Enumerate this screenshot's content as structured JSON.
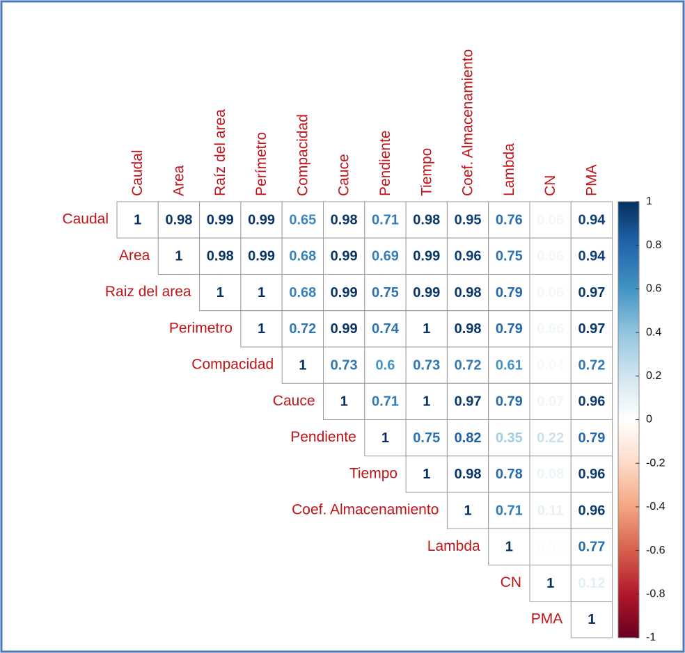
{
  "chart_data": {
    "type": "corrplot",
    "categories": [
      "Caudal",
      "Area",
      "Raíz del area",
      "Perímetro",
      "Compacidad",
      "Cauce",
      "Pendiente",
      "Tiempo",
      "Coef. Almacenamiento",
      "Lambda",
      "CN",
      "PMA"
    ],
    "row_labels": [
      "Caudal",
      "Area",
      "Raiz del area",
      "Perimetro",
      "Compacidad",
      "Cauce",
      "Pendiente",
      "Tiempo",
      "Coef. Almacenamiento",
      "Lambda",
      "CN",
      "PMA"
    ],
    "matrix": [
      [
        1,
        0.98,
        0.99,
        0.99,
        0.65,
        0.98,
        0.71,
        0.98,
        0.95,
        0.76,
        0.06,
        0.94
      ],
      [
        1,
        0.98,
        0.99,
        0.68,
        0.99,
        0.69,
        0.99,
        0.96,
        0.75,
        0.06,
        0.94
      ],
      [
        1,
        1,
        0.68,
        0.99,
        0.75,
        0.99,
        0.98,
        0.79,
        0.06,
        0.97
      ],
      [
        1,
        0.72,
        0.99,
        0.74,
        1,
        0.98,
        0.79,
        0.06,
        0.97
      ],
      [
        1,
        0.73,
        0.6,
        0.73,
        0.72,
        0.61,
        0.04,
        0.72
      ],
      [
        1,
        0.71,
        1,
        0.97,
        0.79,
        0.07,
        0.96
      ],
      [
        1,
        0.75,
        0.82,
        0.35,
        0.22,
        0.79
      ],
      [
        1,
        0.98,
        0.78,
        0.08,
        0.96
      ],
      [
        1,
        0.71,
        0.11,
        0.96
      ],
      [
        1,
        0.02,
        0.77
      ],
      [
        1,
        0.12
      ],
      [
        1
      ]
    ],
    "colors": [
      "#67001F",
      "#B2182B",
      "#D6604D",
      "#F4A582",
      "#FDDBC7",
      "#FFFFFF",
      "#D1E5F0",
      "#92C5DE",
      "#4393C3",
      "#2166AC",
      "#053061"
    ],
    "ylim": [
      -1,
      1
    ],
    "yticks": [
      1,
      0.8,
      0.6,
      0.4,
      0.2,
      0,
      -0.2,
      -0.4,
      -0.6,
      -0.8,
      -1
    ]
  }
}
